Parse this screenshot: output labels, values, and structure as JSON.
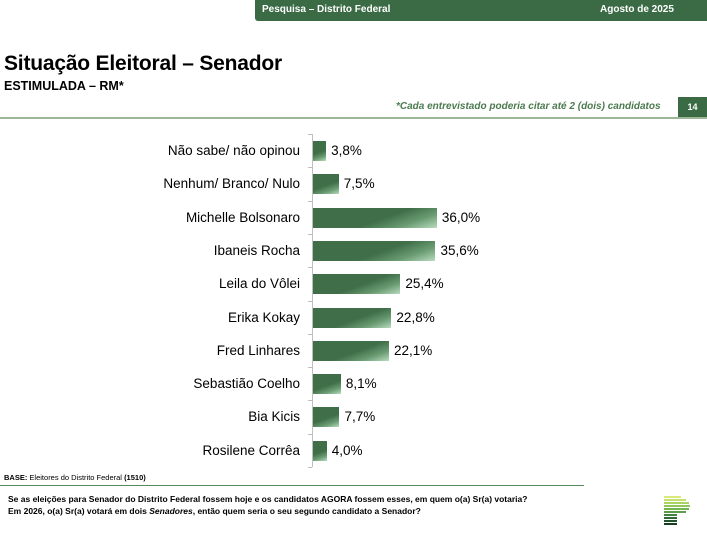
{
  "header": {
    "survey": "Pesquisa – Distrito Federal",
    "date": "Agosto de 2025",
    "title": "Situação Eleitoral – Senador",
    "subtitle": "ESTIMULADA – RM*",
    "note": "*Cada entrevistado poderia citar até 2 (dois) candidatos",
    "page_number": "14"
  },
  "colors": {
    "brand_green": "#3b6b45",
    "bar_green": "#3f6e48",
    "rule_green": "#9bb596"
  },
  "chart_data": {
    "type": "bar",
    "orientation": "horizontal",
    "title": "Situação Eleitoral – Senador",
    "subtitle": "ESTIMULADA – RM*",
    "xlabel": "",
    "ylabel": "",
    "grid": false,
    "unit": "%",
    "categories": [
      "Não sabe/ não opinou",
      "Nenhum/ Branco/ Nulo",
      "Michelle Bolsonaro",
      "Ibaneis Rocha",
      "Leila do Vôlei",
      "Erika Kokay",
      "Fred Linhares",
      "Sebastião Coelho",
      "Bia Kicis",
      "Rosilene Corrêa"
    ],
    "values": [
      3.8,
      7.5,
      36.0,
      35.6,
      25.4,
      22.8,
      22.1,
      8.1,
      7.7,
      4.0
    ],
    "value_labels": [
      "3,8%",
      "7,5%",
      "36,0%",
      "35,6%",
      "25,4%",
      "22,8%",
      "22,1%",
      "8,1%",
      "7,7%",
      "4,0%"
    ]
  },
  "footer": {
    "base_label": "BASE:",
    "base_text": " Eleitores do Distrito Federal ",
    "base_count": "(1510)",
    "question_line1": "Se as eleições para Senador do Distrito Federal fossem hoje e os candidatos AGORA fossem esses, em quem o(a) Sr(a) votaria?",
    "question_line2_a": "Em 2026, o(a) Sr(a) votará em dois ",
    "question_line2_em": "Senadores",
    "question_line2_b": ", então quem seria o seu segundo candidato a Senador?",
    "logo": "stacked-bars-logo-icon"
  }
}
